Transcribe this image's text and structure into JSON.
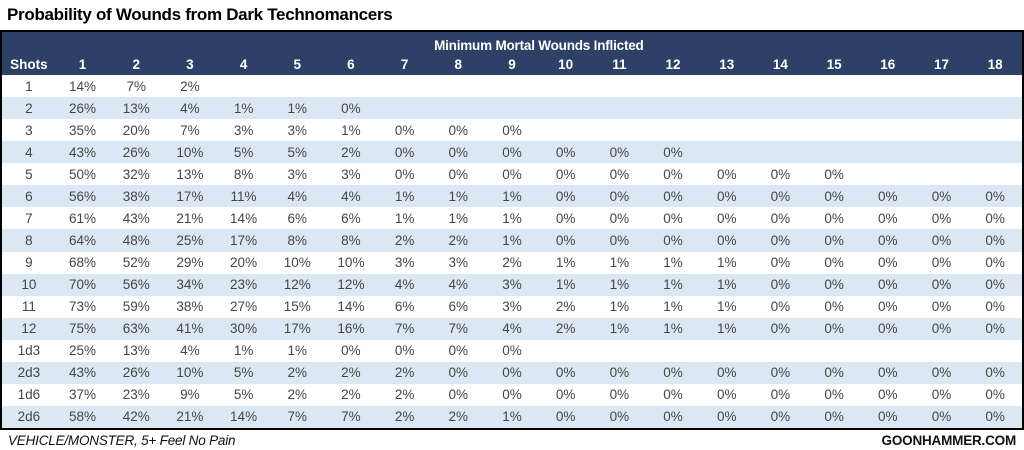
{
  "title": "Probability of Wounds from Dark Technomancers",
  "footer": {
    "left": "VEHICLE/MONSTER, 5+ Feel No Pain",
    "right": "GOONHAMMER.COM"
  },
  "colors": {
    "header_bg": "#2d4066",
    "header_text": "#ffffff",
    "row_alt_bg": "#dbe8f4",
    "cell_text": "#454545",
    "border": "#000000"
  },
  "chart_data": {
    "type": "table",
    "title": "Probability of Wounds from Dark Technomancers",
    "group_header": "Minimum Mortal Wounds Inflicted",
    "shots_label": "Shots",
    "columns": [
      "1",
      "2",
      "3",
      "4",
      "5",
      "6",
      "7",
      "8",
      "9",
      "10",
      "11",
      "12",
      "13",
      "14",
      "15",
      "16",
      "17",
      "18"
    ],
    "rows": [
      {
        "label": "1",
        "values": [
          "14%",
          "7%",
          "2%",
          "",
          "",
          "",
          "",
          "",
          "",
          "",
          "",
          "",
          "",
          "",
          "",
          "",
          "",
          ""
        ]
      },
      {
        "label": "2",
        "values": [
          "26%",
          "13%",
          "4%",
          "1%",
          "1%",
          "0%",
          "",
          "",
          "",
          "",
          "",
          "",
          "",
          "",
          "",
          "",
          "",
          ""
        ]
      },
      {
        "label": "3",
        "values": [
          "35%",
          "20%",
          "7%",
          "3%",
          "3%",
          "1%",
          "0%",
          "0%",
          "0%",
          "",
          "",
          "",
          "",
          "",
          "",
          "",
          "",
          ""
        ]
      },
      {
        "label": "4",
        "values": [
          "43%",
          "26%",
          "10%",
          "5%",
          "5%",
          "2%",
          "0%",
          "0%",
          "0%",
          "0%",
          "0%",
          "0%",
          "",
          "",
          "",
          "",
          "",
          ""
        ]
      },
      {
        "label": "5",
        "values": [
          "50%",
          "32%",
          "13%",
          "8%",
          "3%",
          "3%",
          "0%",
          "0%",
          "0%",
          "0%",
          "0%",
          "0%",
          "0%",
          "0%",
          "0%",
          "",
          "",
          ""
        ]
      },
      {
        "label": "6",
        "values": [
          "56%",
          "38%",
          "17%",
          "11%",
          "4%",
          "4%",
          "1%",
          "1%",
          "1%",
          "0%",
          "0%",
          "0%",
          "0%",
          "0%",
          "0%",
          "0%",
          "0%",
          "0%"
        ]
      },
      {
        "label": "7",
        "values": [
          "61%",
          "43%",
          "21%",
          "14%",
          "6%",
          "6%",
          "1%",
          "1%",
          "1%",
          "0%",
          "0%",
          "0%",
          "0%",
          "0%",
          "0%",
          "0%",
          "0%",
          "0%"
        ]
      },
      {
        "label": "8",
        "values": [
          "64%",
          "48%",
          "25%",
          "17%",
          "8%",
          "8%",
          "2%",
          "2%",
          "1%",
          "0%",
          "0%",
          "0%",
          "0%",
          "0%",
          "0%",
          "0%",
          "0%",
          "0%"
        ]
      },
      {
        "label": "9",
        "values": [
          "68%",
          "52%",
          "29%",
          "20%",
          "10%",
          "10%",
          "3%",
          "3%",
          "2%",
          "1%",
          "1%",
          "1%",
          "1%",
          "0%",
          "0%",
          "0%",
          "0%",
          "0%"
        ]
      },
      {
        "label": "10",
        "values": [
          "70%",
          "56%",
          "34%",
          "23%",
          "12%",
          "12%",
          "4%",
          "4%",
          "3%",
          "1%",
          "1%",
          "1%",
          "1%",
          "0%",
          "0%",
          "0%",
          "0%",
          "0%"
        ]
      },
      {
        "label": "11",
        "values": [
          "73%",
          "59%",
          "38%",
          "27%",
          "15%",
          "14%",
          "6%",
          "6%",
          "3%",
          "2%",
          "1%",
          "1%",
          "1%",
          "0%",
          "0%",
          "0%",
          "0%",
          "0%"
        ]
      },
      {
        "label": "12",
        "values": [
          "75%",
          "63%",
          "41%",
          "30%",
          "17%",
          "16%",
          "7%",
          "7%",
          "4%",
          "2%",
          "1%",
          "1%",
          "1%",
          "0%",
          "0%",
          "0%",
          "0%",
          "0%"
        ]
      },
      {
        "label": "1d3",
        "values": [
          "25%",
          "13%",
          "4%",
          "1%",
          "1%",
          "0%",
          "0%",
          "0%",
          "0%",
          "",
          "",
          "",
          "",
          "",
          "",
          "",
          "",
          ""
        ]
      },
      {
        "label": "2d3",
        "values": [
          "43%",
          "26%",
          "10%",
          "5%",
          "2%",
          "2%",
          "2%",
          "0%",
          "0%",
          "0%",
          "0%",
          "0%",
          "0%",
          "0%",
          "0%",
          "0%",
          "0%",
          "0%"
        ]
      },
      {
        "label": "1d6",
        "values": [
          "37%",
          "23%",
          "9%",
          "5%",
          "2%",
          "2%",
          "2%",
          "0%",
          "0%",
          "0%",
          "0%",
          "0%",
          "0%",
          "0%",
          "0%",
          "0%",
          "0%",
          "0%"
        ]
      },
      {
        "label": "2d6",
        "values": [
          "58%",
          "42%",
          "21%",
          "14%",
          "7%",
          "7%",
          "2%",
          "2%",
          "1%",
          "0%",
          "0%",
          "0%",
          "0%",
          "0%",
          "0%",
          "0%",
          "0%",
          "0%"
        ]
      }
    ]
  }
}
